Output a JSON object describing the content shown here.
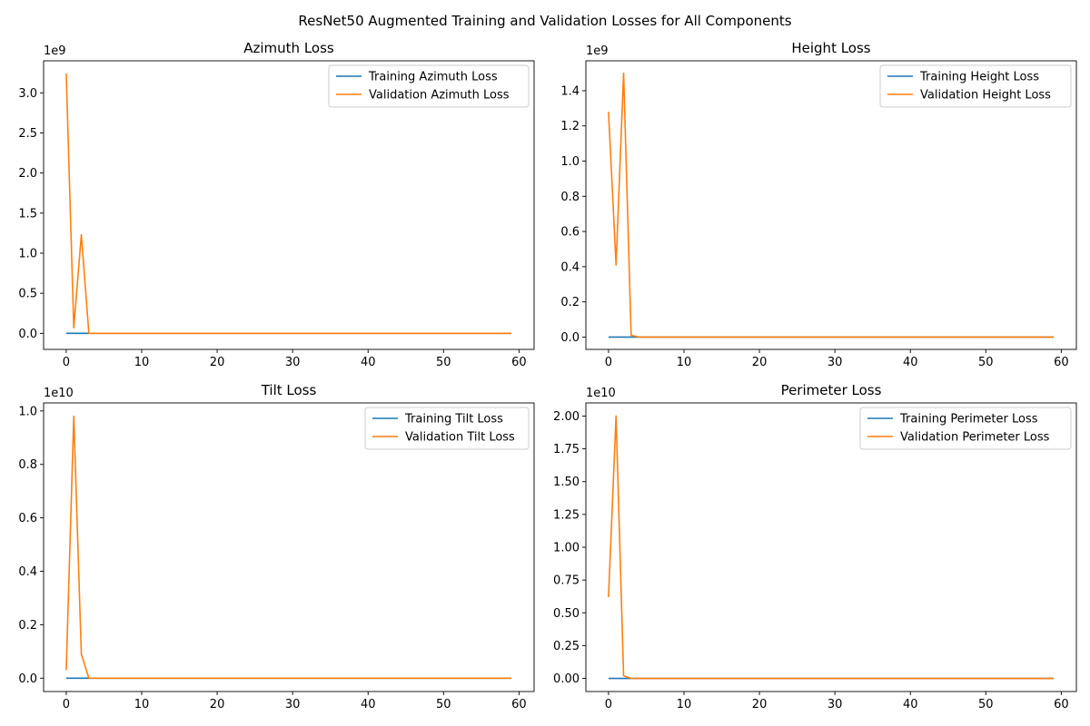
{
  "figure": {
    "title": "ResNet50 Augmented Training and Validation Losses for All Components"
  },
  "colors": {
    "training": "#1f77b4",
    "validation": "#ff7f0e",
    "axes": "#000000",
    "legend_border": "#cccccc"
  },
  "chart_data": [
    {
      "type": "line",
      "title": "Azimuth Loss",
      "xlabel": "",
      "ylabel": "",
      "xlim": [
        -3,
        62
      ],
      "ylim": [
        -0.2,
        3.4
      ],
      "x_ticks": [
        0,
        10,
        20,
        30,
        40,
        50,
        60
      ],
      "y_ticks": [
        0.0,
        0.5,
        1.0,
        1.5,
        2.0,
        2.5,
        3.0
      ],
      "y_tick_labels": [
        "0.0",
        "0.5",
        "1.0",
        "1.5",
        "2.0",
        "2.5",
        "3.0"
      ],
      "y_scale_label": "1e9",
      "legend_position": "upper right",
      "grid": false,
      "series": [
        {
          "name": "Training Azimuth Loss",
          "x": [
            0,
            59
          ],
          "y": [
            0.0,
            0.0
          ]
        },
        {
          "name": "Validation Azimuth Loss",
          "x": [
            0,
            1,
            2,
            3,
            4,
            59
          ],
          "y": [
            3.24,
            0.07,
            1.23,
            0.0,
            0.0,
            0.0
          ]
        }
      ]
    },
    {
      "type": "line",
      "title": "Height Loss",
      "xlabel": "",
      "ylabel": "",
      "xlim": [
        -3,
        62
      ],
      "ylim": [
        -0.07,
        1.57
      ],
      "x_ticks": [
        0,
        10,
        20,
        30,
        40,
        50,
        60
      ],
      "y_ticks": [
        0.0,
        0.2,
        0.4,
        0.6,
        0.8,
        1.0,
        1.2,
        1.4
      ],
      "y_tick_labels": [
        "0.0",
        "0.2",
        "0.4",
        "0.6",
        "0.8",
        "1.0",
        "1.2",
        "1.4"
      ],
      "y_scale_label": "1e9",
      "legend_position": "upper right",
      "grid": false,
      "series": [
        {
          "name": "Training Height Loss",
          "x": [
            0,
            59
          ],
          "y": [
            0.0,
            0.0
          ]
        },
        {
          "name": "Validation Height Loss",
          "x": [
            0,
            1,
            2,
            3,
            4,
            59
          ],
          "y": [
            1.28,
            0.41,
            1.5,
            0.01,
            0.0,
            0.0
          ]
        }
      ]
    },
    {
      "type": "line",
      "title": "Tilt Loss",
      "xlabel": "",
      "ylabel": "",
      "xlim": [
        -3,
        62
      ],
      "ylim": [
        -0.05,
        1.03
      ],
      "x_ticks": [
        0,
        10,
        20,
        30,
        40,
        50,
        60
      ],
      "y_ticks": [
        0.0,
        0.2,
        0.4,
        0.6,
        0.8,
        1.0
      ],
      "y_tick_labels": [
        "0.0",
        "0.2",
        "0.4",
        "0.6",
        "0.8",
        "1.0"
      ],
      "y_scale_label": "1e10",
      "legend_position": "upper right",
      "grid": false,
      "series": [
        {
          "name": "Training Tilt Loss",
          "x": [
            0,
            59
          ],
          "y": [
            0.0,
            0.0
          ]
        },
        {
          "name": "Validation Tilt Loss",
          "x": [
            0,
            1,
            2,
            3,
            4,
            59
          ],
          "y": [
            0.03,
            0.98,
            0.09,
            0.0,
            0.0,
            0.0
          ]
        }
      ]
    },
    {
      "type": "line",
      "title": "Perimeter Loss",
      "xlabel": "",
      "ylabel": "",
      "xlim": [
        -3,
        62
      ],
      "ylim": [
        -0.1,
        2.1
      ],
      "x_ticks": [
        0,
        10,
        20,
        30,
        40,
        50,
        60
      ],
      "y_ticks": [
        0.0,
        0.25,
        0.5,
        0.75,
        1.0,
        1.25,
        1.5,
        1.75,
        2.0
      ],
      "y_tick_labels": [
        "0.00",
        "0.25",
        "0.50",
        "0.75",
        "1.00",
        "1.25",
        "1.50",
        "1.75",
        "2.00"
      ],
      "y_scale_label": "1e10",
      "legend_position": "upper right",
      "grid": false,
      "series": [
        {
          "name": "Training Perimeter Loss",
          "x": [
            0,
            59
          ],
          "y": [
            0.0,
            0.0
          ]
        },
        {
          "name": "Validation Perimeter Loss",
          "x": [
            0,
            1,
            2,
            3,
            4,
            59
          ],
          "y": [
            0.62,
            2.0,
            0.02,
            0.0,
            0.0,
            0.0
          ]
        }
      ]
    }
  ]
}
